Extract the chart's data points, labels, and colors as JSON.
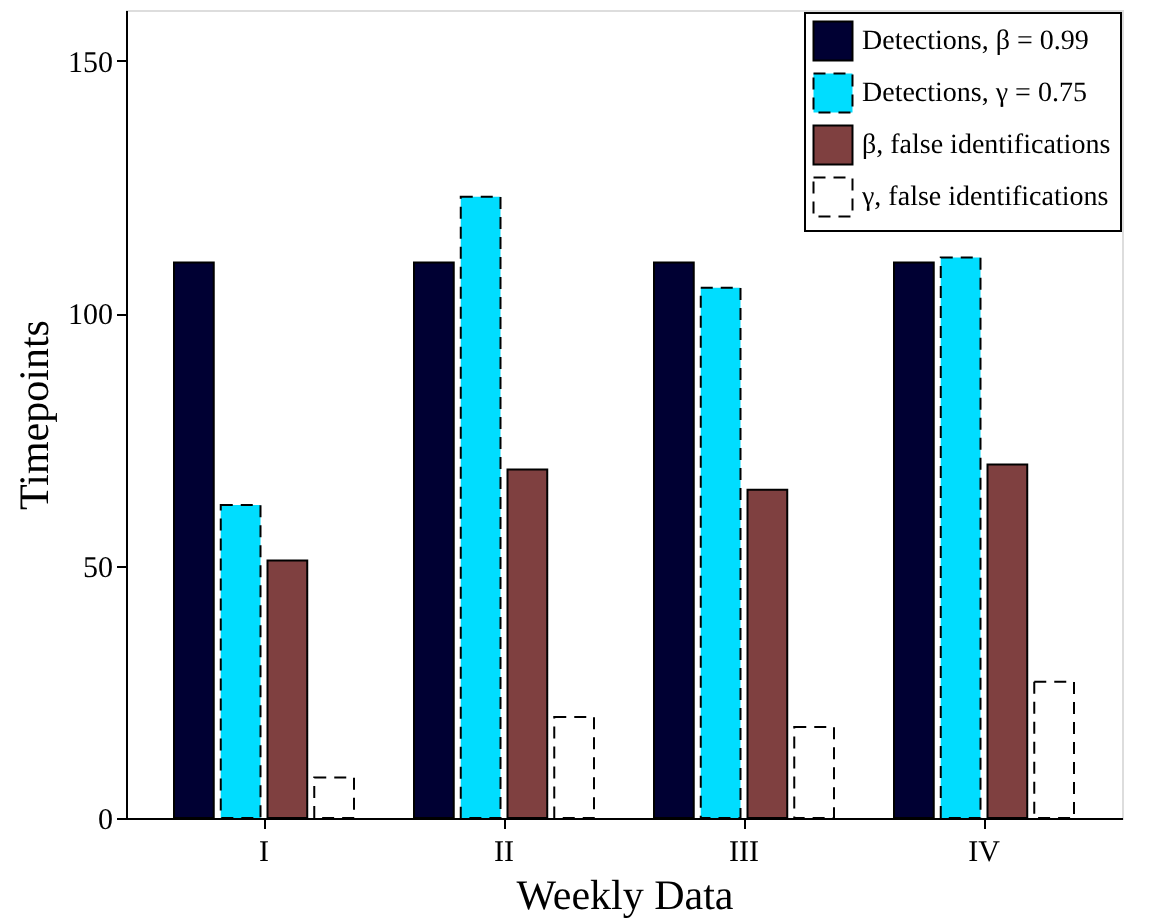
{
  "chart_data": {
    "type": "bar",
    "xlabel": "Weekly Data",
    "ylabel": "Timepoints",
    "categories": [
      "I",
      "II",
      "III",
      "IV"
    ],
    "series": [
      {
        "name": "Detections, β = 0.99",
        "color": "#000033",
        "values": [
          110,
          110,
          110,
          110
        ]
      },
      {
        "name": "Detections, γ = 0.75",
        "color": "#00ddff",
        "values": [
          62,
          123,
          105,
          111
        ],
        "line_style": "dashed"
      },
      {
        "name": "β, false identifications",
        "color": "#7f4040",
        "values": [
          51,
          69,
          65,
          70
        ]
      },
      {
        "name": "γ, false identifications",
        "color": "#ffffff",
        "values": [
          8,
          20,
          18,
          27
        ],
        "line_style": "dashed"
      }
    ],
    "ylim": [
      0,
      160
    ],
    "yticks": [
      0,
      50,
      100,
      150
    ],
    "grid": false,
    "legend": "top right"
  }
}
